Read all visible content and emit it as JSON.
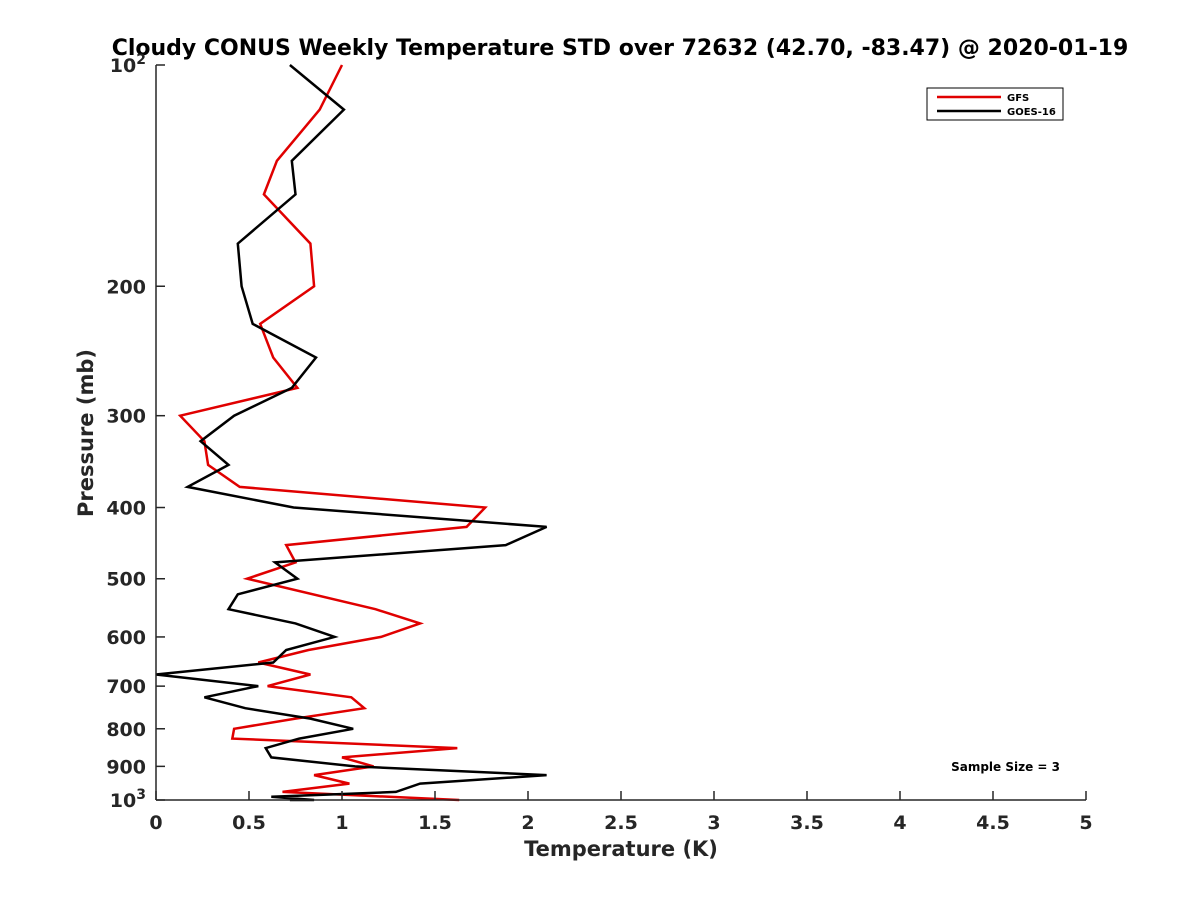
{
  "chart_data": {
    "type": "line",
    "title": "Cloudy CONUS Weekly Temperature STD over 72632 (42.70, -83.47) @ 2020-01-19",
    "xlabel": "Temperature (K)",
    "ylabel": "Pressure (mb)",
    "xlim": [
      0,
      5
    ],
    "ylim": [
      100,
      1000
    ],
    "y_scale": "log",
    "y_reversed": true,
    "x_ticks": [
      "0",
      "0.5",
      "1",
      "1.5",
      "2",
      "2.5",
      "3",
      "3.5",
      "4",
      "4.5",
      "5"
    ],
    "y_ticks": [
      {
        "value": 100,
        "label": "10",
        "sup": "2"
      },
      {
        "value": 200,
        "label": "200"
      },
      {
        "value": 300,
        "label": "300"
      },
      {
        "value": 400,
        "label": "400"
      },
      {
        "value": 500,
        "label": "500"
      },
      {
        "value": 600,
        "label": "600"
      },
      {
        "value": 700,
        "label": "700"
      },
      {
        "value": 800,
        "label": "800"
      },
      {
        "value": 900,
        "label": "900"
      },
      {
        "value": 1000,
        "label": "10",
        "sup": "3"
      }
    ],
    "grid": false,
    "legend_position": "top-right",
    "annotation": "Sample Size = 3",
    "series": [
      {
        "name": "GFS",
        "color": "#e00000",
        "points": [
          [
            1.0,
            100
          ],
          [
            0.88,
            115
          ],
          [
            0.65,
            135
          ],
          [
            0.58,
            150
          ],
          [
            0.83,
            175
          ],
          [
            0.85,
            200
          ],
          [
            0.56,
            225
          ],
          [
            0.63,
            250
          ],
          [
            0.76,
            275
          ],
          [
            0.13,
            300
          ],
          [
            0.26,
            325
          ],
          [
            0.28,
            350
          ],
          [
            0.45,
            375
          ],
          [
            1.77,
            400
          ],
          [
            1.67,
            425
          ],
          [
            0.7,
            450
          ],
          [
            0.75,
            475
          ],
          [
            0.49,
            500
          ],
          [
            1.18,
            550
          ],
          [
            1.42,
            575
          ],
          [
            1.21,
            600
          ],
          [
            0.82,
            625
          ],
          [
            0.55,
            650
          ],
          [
            0.83,
            675
          ],
          [
            0.6,
            700
          ],
          [
            1.05,
            725
          ],
          [
            1.12,
            750
          ],
          [
            0.75,
            775
          ],
          [
            0.42,
            800
          ],
          [
            0.41,
            825
          ],
          [
            1.62,
            850
          ],
          [
            1.0,
            875
          ],
          [
            1.17,
            900
          ],
          [
            0.85,
            925
          ],
          [
            1.04,
            950
          ],
          [
            0.68,
            975
          ],
          [
            1.63,
            1000
          ]
        ]
      },
      {
        "name": "GOES-16",
        "color": "#000000",
        "points": [
          [
            0.72,
            100
          ],
          [
            1.01,
            115
          ],
          [
            0.73,
            135
          ],
          [
            0.75,
            150
          ],
          [
            0.44,
            175
          ],
          [
            0.46,
            200
          ],
          [
            0.52,
            225
          ],
          [
            0.86,
            250
          ],
          [
            0.73,
            275
          ],
          [
            0.42,
            300
          ],
          [
            0.24,
            325
          ],
          [
            0.39,
            350
          ],
          [
            0.17,
            375
          ],
          [
            0.74,
            400
          ],
          [
            2.1,
            425
          ],
          [
            1.88,
            450
          ],
          [
            0.64,
            475
          ],
          [
            0.76,
            500
          ],
          [
            0.44,
            525
          ],
          [
            0.39,
            550
          ],
          [
            0.75,
            575
          ],
          [
            0.96,
            600
          ],
          [
            0.7,
            625
          ],
          [
            0.63,
            650
          ],
          [
            0.0,
            675
          ],
          [
            0.55,
            700
          ],
          [
            0.26,
            725
          ],
          [
            0.48,
            750
          ],
          [
            0.83,
            775
          ],
          [
            1.06,
            800
          ],
          [
            0.77,
            825
          ],
          [
            0.59,
            850
          ],
          [
            0.62,
            875
          ],
          [
            1.07,
            900
          ],
          [
            2.1,
            925
          ],
          [
            1.42,
            950
          ],
          [
            1.29,
            975
          ],
          [
            0.62,
            990
          ],
          [
            0.85,
            1000
          ],
          [
            0.72,
            1000
          ]
        ]
      }
    ]
  }
}
